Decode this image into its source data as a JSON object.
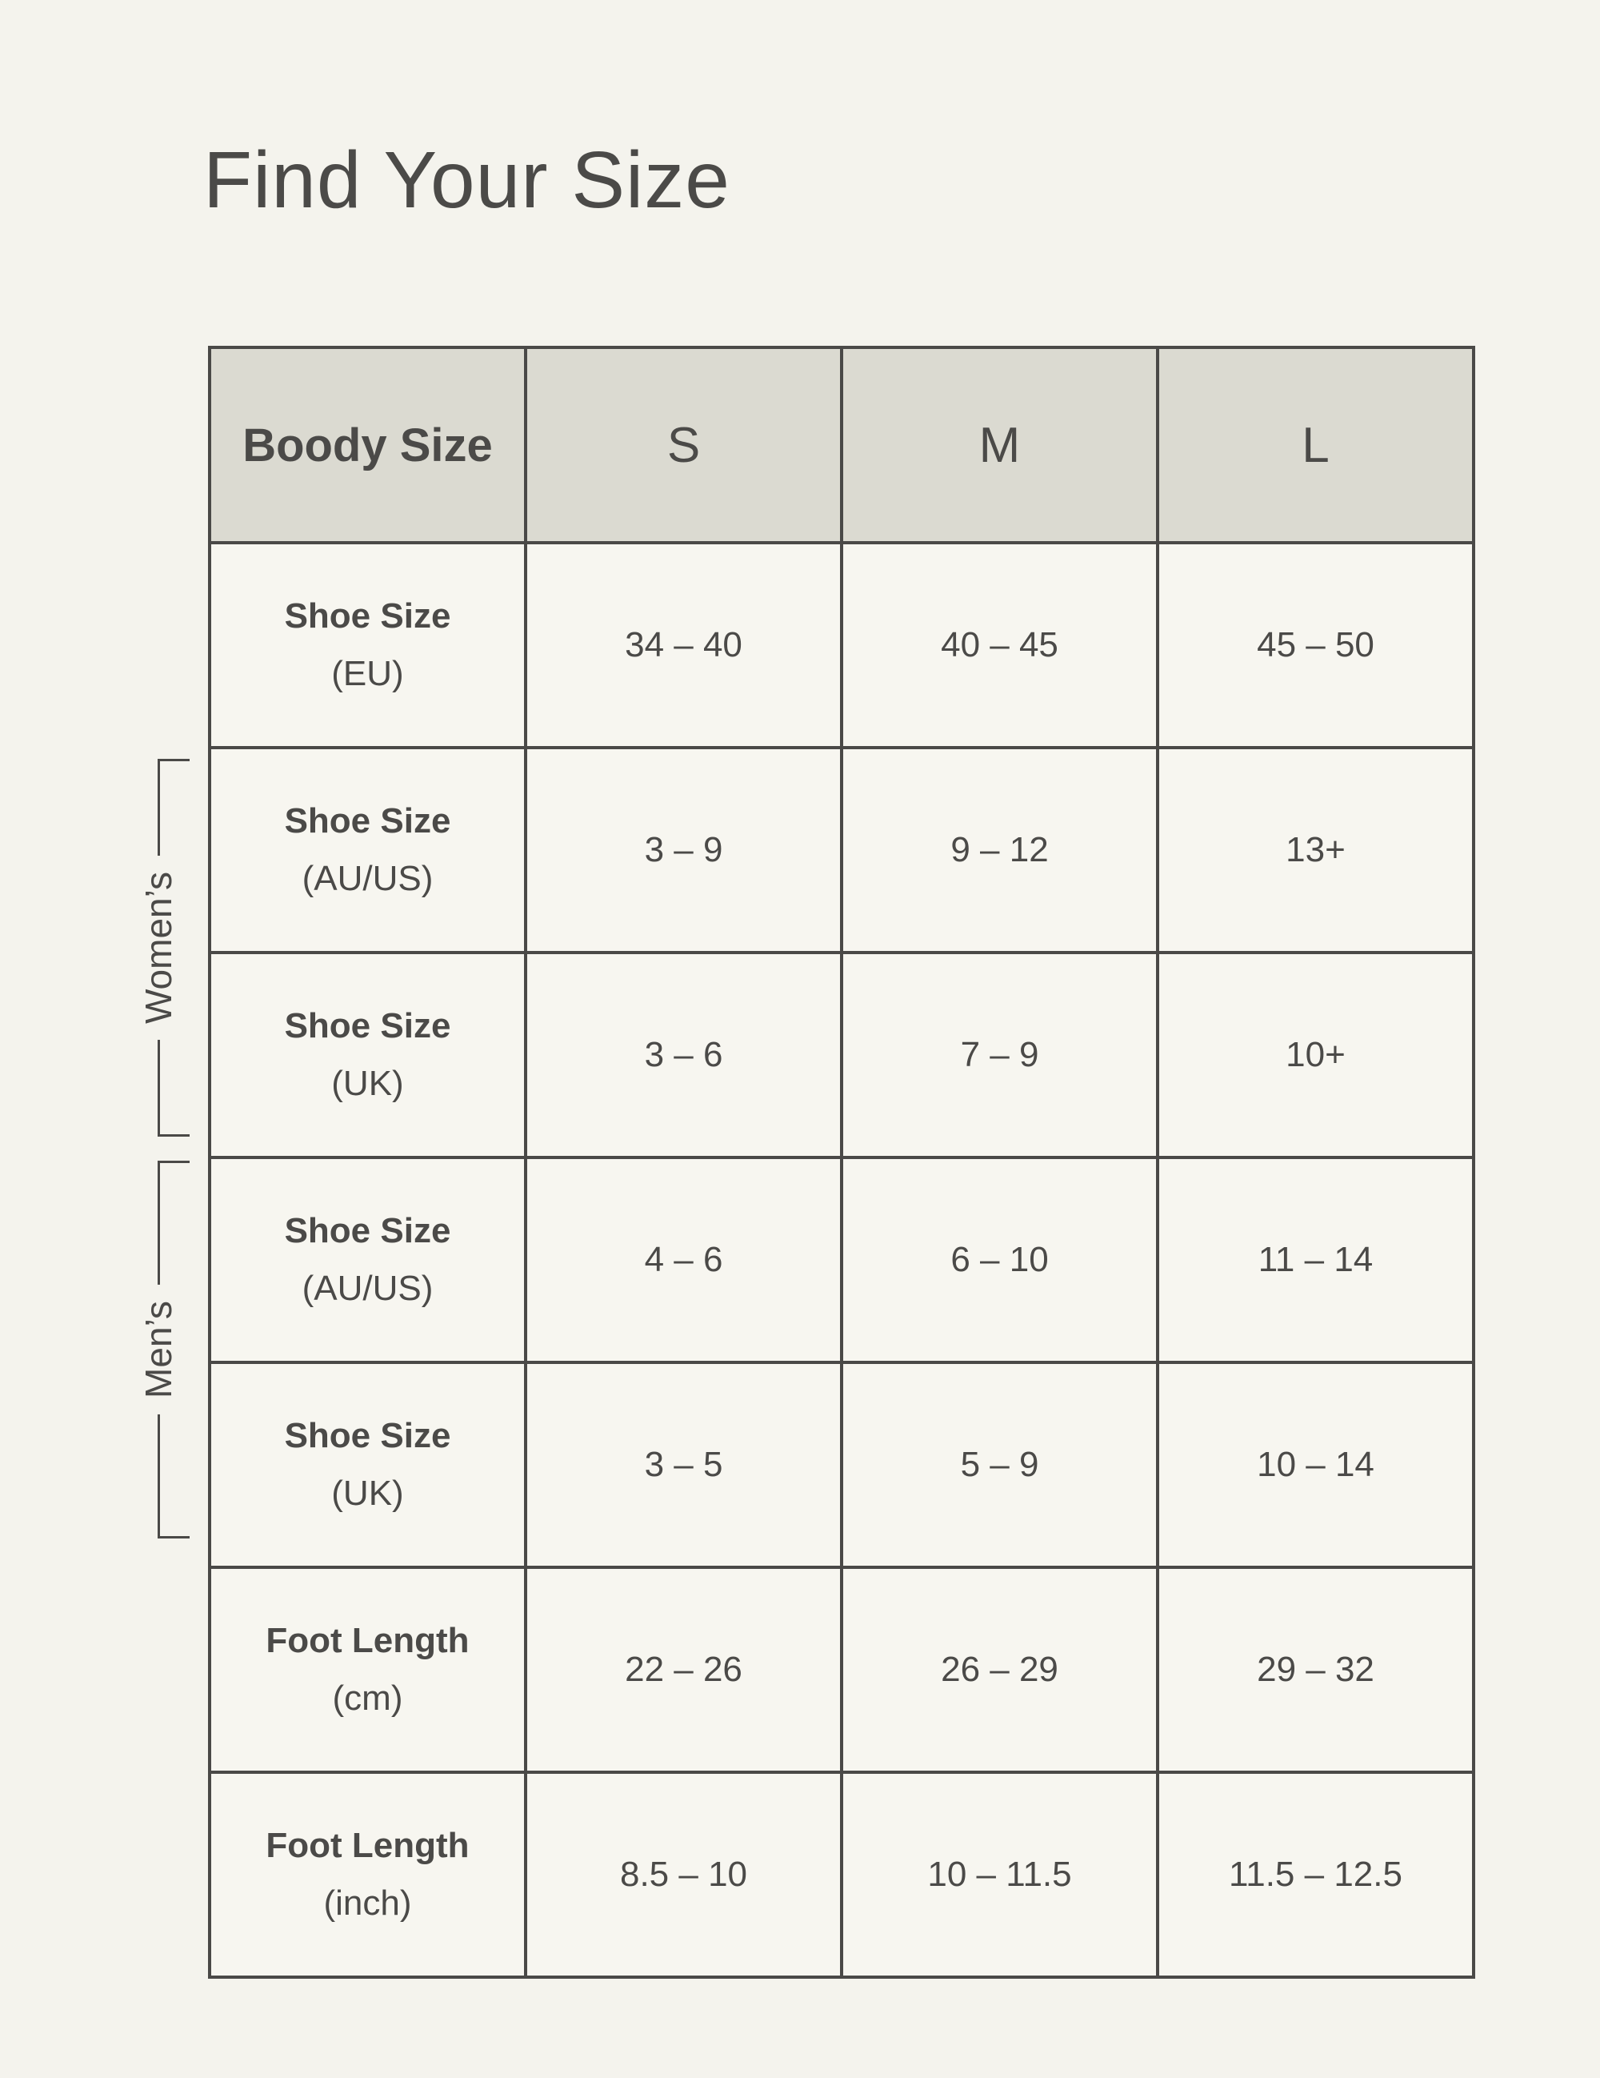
{
  "page": {
    "title": "Find Your Size"
  },
  "colors": {
    "page_background": "#F4F3ED",
    "header_background": "#DBDAD1",
    "cell_background": "#F7F6F0",
    "line_and_text": "#4A4947"
  },
  "side_groups": {
    "womens_label": "Women’s",
    "mens_label": "Men’s"
  },
  "table": {
    "header_label": "Boody Size",
    "size_columns": [
      "S",
      "M",
      "L"
    ],
    "rows": [
      {
        "label": "Shoe Size",
        "sublabel": "(EU)",
        "values": [
          "34 – 40",
          "40 – 45",
          "45 – 50"
        ]
      },
      {
        "label": "Shoe Size",
        "sublabel": "(AU/US)",
        "values": [
          "3 – 9",
          "9 – 12",
          "13+"
        ]
      },
      {
        "label": "Shoe Size",
        "sublabel": "(UK)",
        "values": [
          "3 – 6",
          "7 – 9",
          "10+"
        ]
      },
      {
        "label": "Shoe Size",
        "sublabel": "(AU/US)",
        "values": [
          "4 – 6",
          "6 – 10",
          "11 – 14"
        ]
      },
      {
        "label": "Shoe Size",
        "sublabel": "(UK)",
        "values": [
          "3 – 5",
          "5 – 9",
          "10 – 14"
        ]
      },
      {
        "label": "Foot Length",
        "sublabel": "(cm)",
        "values": [
          "22 – 26",
          "26 – 29",
          "29 – 32"
        ]
      },
      {
        "label": "Foot Length",
        "sublabel": "(inch)",
        "values": [
          "8.5 – 10",
          "10 – 11.5",
          "11.5 – 12.5"
        ]
      }
    ]
  }
}
